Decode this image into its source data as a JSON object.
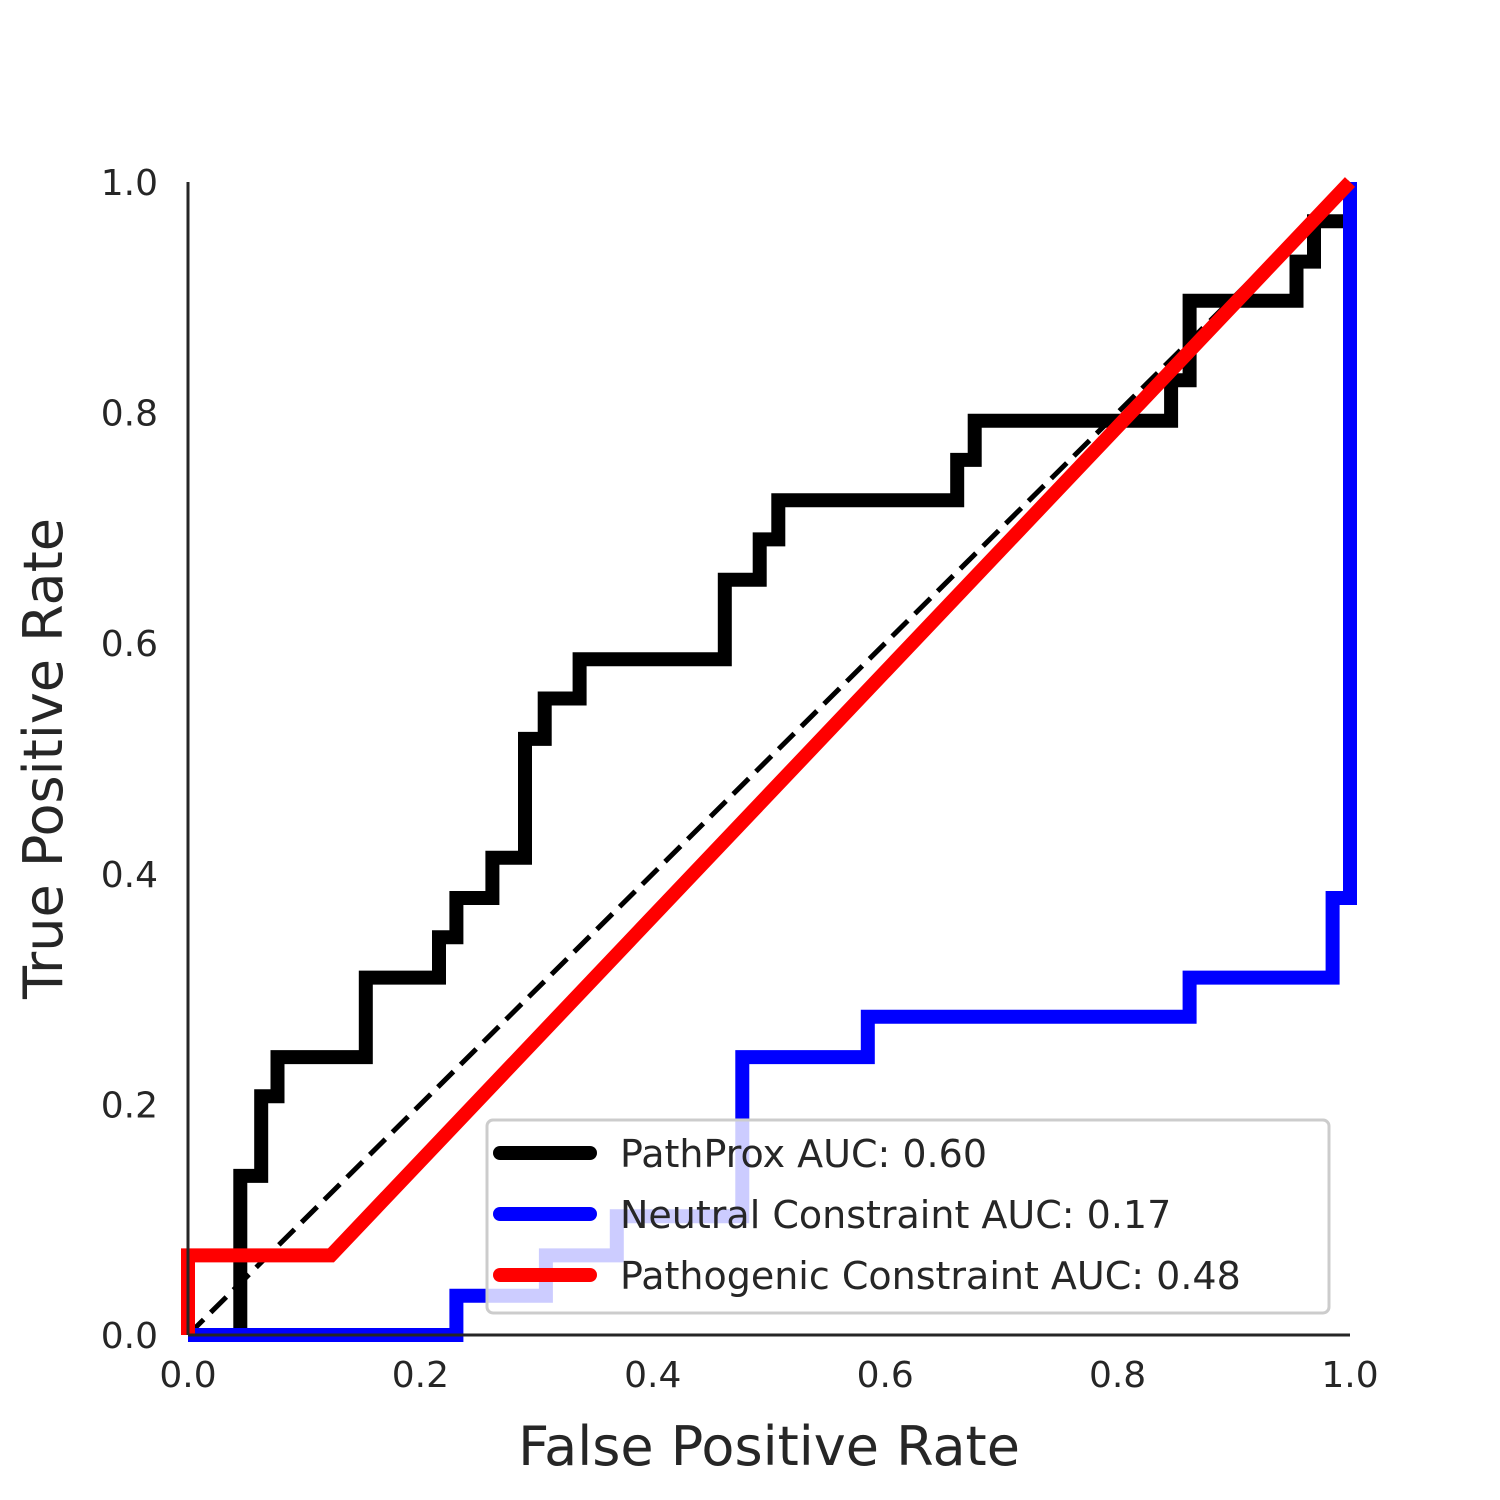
{
  "chart_data": {
    "type": "line",
    "title": "",
    "xlabel": "False Positive Rate",
    "ylabel": "True Positive Rate",
    "xlim": [
      0.0,
      1.0
    ],
    "ylim": [
      0.0,
      1.0
    ],
    "xticks": [
      "0.0",
      "0.2",
      "0.4",
      "0.6",
      "0.8",
      "1.0"
    ],
    "yticks": [
      "0.0",
      "0.2",
      "0.4",
      "0.6",
      "0.8",
      "1.0"
    ],
    "grid": false,
    "legend_position": "lower-right",
    "reference_line": {
      "x": [
        0,
        1
      ],
      "y": [
        0,
        1
      ],
      "style": "dashed",
      "color": "#000000"
    },
    "series": [
      {
        "name": "PathProx AUC:  0.60",
        "color": "#000000",
        "x": [
          0.0,
          0.045,
          0.045,
          0.063,
          0.063,
          0.077,
          0.077,
          0.153,
          0.153,
          0.216,
          0.216,
          0.231,
          0.231,
          0.262,
          0.262,
          0.29,
          0.29,
          0.307,
          0.307,
          0.337,
          0.337,
          0.462,
          0.462,
          0.492,
          0.492,
          0.508,
          0.508,
          0.662,
          0.662,
          0.677,
          0.677,
          0.846,
          0.846,
          0.862,
          0.862,
          0.954,
          0.954,
          0.969,
          0.969,
          1.0
        ],
        "y": [
          0.0,
          0.0,
          0.138,
          0.138,
          0.207,
          0.207,
          0.241,
          0.241,
          0.31,
          0.31,
          0.345,
          0.345,
          0.379,
          0.379,
          0.414,
          0.414,
          0.517,
          0.517,
          0.552,
          0.552,
          0.586,
          0.586,
          0.655,
          0.655,
          0.69,
          0.69,
          0.724,
          0.724,
          0.759,
          0.759,
          0.793,
          0.793,
          0.828,
          0.828,
          0.897,
          0.897,
          0.931,
          0.931,
          0.966,
          0.966
        ]
      },
      {
        "name": "Neutral Constraint AUC:  0.17",
        "color": "#0000ff",
        "x": [
          0.0,
          0.231,
          0.231,
          0.308,
          0.308,
          0.369,
          0.369,
          0.477,
          0.477,
          0.585,
          0.585,
          0.862,
          0.862,
          0.985,
          0.985,
          1.0,
          1.0
        ],
        "y": [
          0.0,
          0.0,
          0.034,
          0.034,
          0.069,
          0.069,
          0.103,
          0.103,
          0.241,
          0.241,
          0.276,
          0.276,
          0.31,
          0.31,
          0.379,
          0.379,
          1.0
        ]
      },
      {
        "name": "Pathogenic Constraint AUC:  0.48",
        "color": "#ff0000",
        "x": [
          0.0,
          0.0,
          0.123,
          1.0
        ],
        "y": [
          0.0,
          0.069,
          0.069,
          1.0
        ]
      }
    ]
  }
}
